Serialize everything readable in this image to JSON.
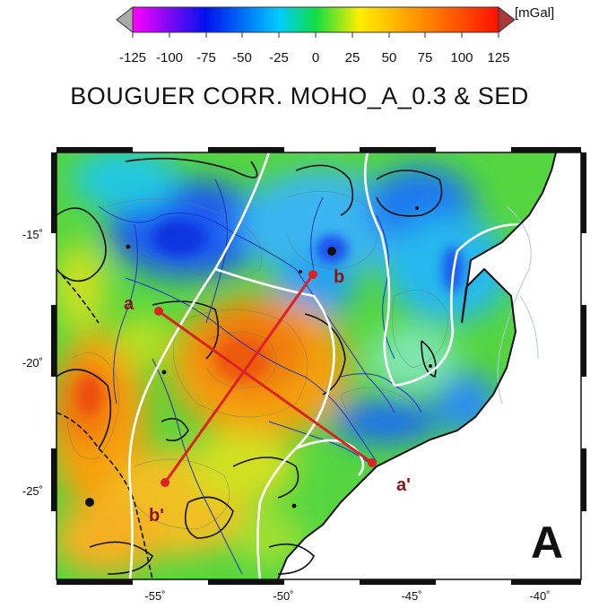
{
  "colorbar": {
    "unit": "[mGal]",
    "ticks": [
      "-125",
      "-100",
      "-75",
      "-50",
      "-25",
      "0",
      "25",
      "50",
      "75",
      "100",
      "125"
    ],
    "range": [
      -125,
      125
    ],
    "stops": [
      "#ff00ff",
      "#0011ee",
      "#00ccff",
      "#11dd44",
      "#ffee00",
      "#ff8800",
      "#ff1100"
    ]
  },
  "title": "BOUGUER CORR. MOHO_A_0.3 & SED",
  "map": {
    "y_labels": [
      "-15˚",
      "-20˚",
      "-25˚"
    ],
    "x_labels": [
      "-55˚",
      "-50˚",
      "-45˚",
      "-40˚"
    ],
    "panel": "A",
    "profiles": [
      {
        "start": "a",
        "end": "a'"
      },
      {
        "start": "b",
        "end": "b'"
      }
    ],
    "point_labels": {
      "a": "a",
      "a_prime": "a'",
      "b": "b",
      "b_prime": "b'"
    },
    "colors": {
      "profile": "#dd2222",
      "coast": "#111111",
      "rivers": "#2233bb",
      "boundary": "#ffffff",
      "ocean": "#ffffff"
    }
  }
}
